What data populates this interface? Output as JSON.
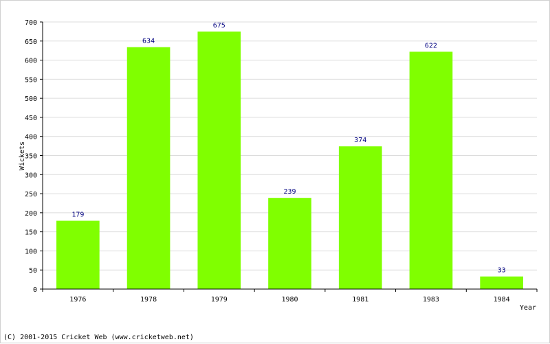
{
  "chart_data": {
    "type": "bar",
    "categories": [
      "1976",
      "1978",
      "1979",
      "1980",
      "1981",
      "1983",
      "1984"
    ],
    "values": [
      179,
      634,
      675,
      239,
      374,
      622,
      33
    ],
    "xlabel": "Year",
    "ylabel": "Wickets",
    "ylim": [
      0,
      700
    ],
    "yticks": [
      0,
      50,
      100,
      150,
      200,
      250,
      300,
      350,
      400,
      450,
      500,
      550,
      600,
      650,
      700
    ],
    "grid": true,
    "bar_color": "#80ff00",
    "label_color": "#000080"
  },
  "footer": {
    "copyright": "(C) 2001-2015 Cricket Web (www.cricketweb.net)"
  }
}
